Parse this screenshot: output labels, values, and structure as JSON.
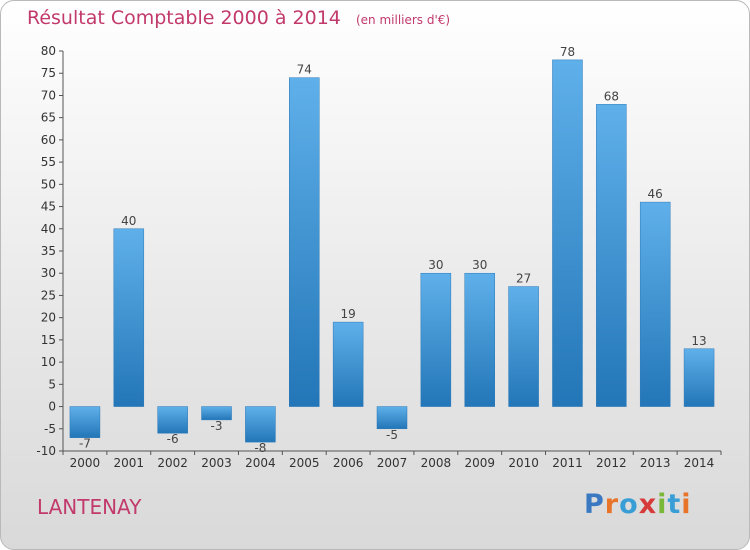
{
  "chart_data": {
    "type": "bar",
    "title": "Résultat Comptable 2000 à 2014",
    "subtitle": "(en milliers d'€)",
    "categories": [
      "2000",
      "2001",
      "2002",
      "2003",
      "2004",
      "2005",
      "2006",
      "2007",
      "2008",
      "2009",
      "2010",
      "2011",
      "2012",
      "2013",
      "2014"
    ],
    "values": [
      -7,
      40,
      -6,
      -3,
      -8,
      74,
      19,
      -5,
      30,
      30,
      27,
      78,
      68,
      46,
      13
    ],
    "ylim": [
      -10,
      80
    ],
    "yticks": [
      -10,
      -5,
      0,
      5,
      10,
      15,
      20,
      25,
      30,
      35,
      40,
      45,
      50,
      55,
      60,
      65,
      70,
      75,
      80
    ],
    "grid": false,
    "bar_color": "#3b8fd0",
    "label_color": "#444444"
  },
  "place_name": "LANTENAY",
  "logo": {
    "letters": [
      {
        "char": "P",
        "color": "#3a78c2"
      },
      {
        "char": "r",
        "color": "#e8742a"
      },
      {
        "char": "o",
        "color": "#3a9ed6"
      },
      {
        "char": "x",
        "color": "#d63a3a"
      },
      {
        "char": "i",
        "color": "#7ab83a"
      },
      {
        "char": "t",
        "color": "#3a9ed6"
      },
      {
        "char": "i",
        "color": "#e8742a"
      }
    ]
  },
  "colors": {
    "accent": "#c23a6b"
  }
}
